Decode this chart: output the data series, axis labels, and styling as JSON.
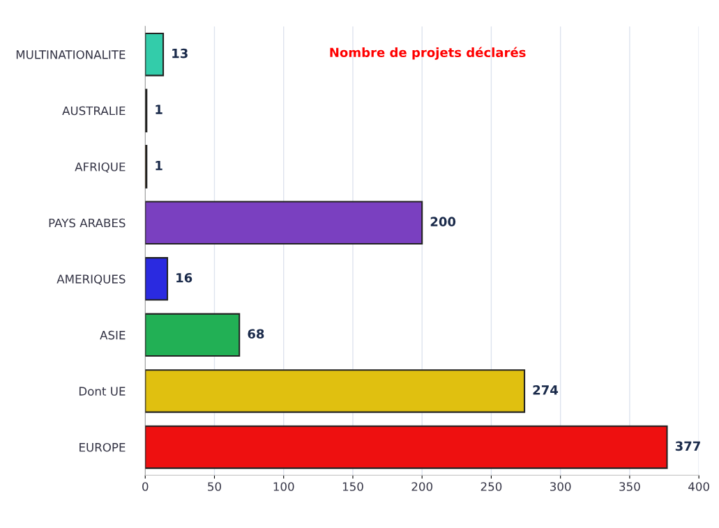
{
  "chart_data": {
    "type": "bar",
    "orientation": "horizontal",
    "title": "Nombre de projets déclarés",
    "categories": [
      "MULTINATIONALITE",
      "AUSTRALIE",
      "AFRIQUE",
      "PAYS ARABES",
      "AMERIQUES",
      "ASIE",
      "Dont UE",
      "EUROPE"
    ],
    "values": [
      13,
      1,
      1,
      200,
      16,
      68,
      274,
      377
    ],
    "colors": [
      "#33ccaa",
      "#8a9a7a",
      "#e8a040",
      "#7a40c0",
      "#2a2ae0",
      "#22b055",
      "#e0c010",
      "#ee1010"
    ],
    "xlim": [
      0,
      400
    ],
    "xticks": [
      0,
      50,
      100,
      150,
      200,
      250,
      300,
      350,
      400
    ],
    "grid": "x",
    "data_labels": true
  }
}
